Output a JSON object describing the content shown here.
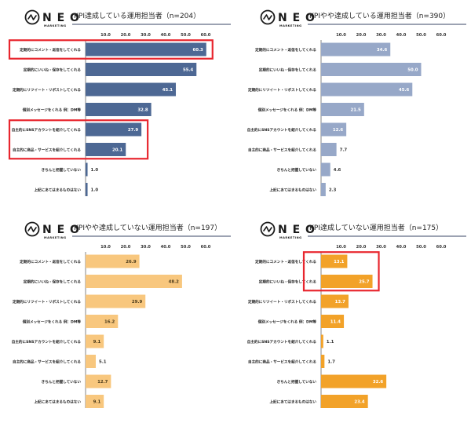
{
  "brand": {
    "name": "N E O",
    "sub": "MARKETING"
  },
  "charts": [
    {
      "type": "bar",
      "title": "KPI達成している運用担当者（n=204）",
      "color": "#4d6894",
      "label_color": "#ffffff",
      "ticks": [
        "10.0",
        "20.0",
        "30.0",
        "40.0",
        "50.0",
        "60.0"
      ],
      "xlim": [
        0,
        60
      ],
      "categories": [
        "定期的にコメント・返信をしてくれる",
        "定期的にいいね・保存をしてくれる",
        "定期的にリツイート・リポストしてくれる",
        "個別メッセージをくれる 例：DM等",
        "自主的にSNSアカウントを紹介してくれる",
        "自主的に商品・サービスを紹介してくれる",
        "きちんと把握していない",
        "上記にあてはまるものはない"
      ],
      "values": [
        60.3,
        55.4,
        45.1,
        32.8,
        27.9,
        20.1,
        1.0,
        1.0
      ],
      "highlight_groups": [
        [
          0,
          0
        ],
        [
          4,
          5
        ]
      ]
    },
    {
      "type": "bar",
      "title": "KPIやや達成している運用担当者（n=390）",
      "color": "#97a8c8",
      "label_color": "#ffffff",
      "ticks": [
        "10.0",
        "20.0",
        "30.0",
        "40.0",
        "50.0",
        "60.0"
      ],
      "xlim": [
        0,
        60
      ],
      "categories": [
        "定期的にコメント・返信をしてくれる",
        "定期的にいいね・保存をしてくれる",
        "定期的にリツイート・リポストしてくれる",
        "個別メッセージをくれる 例：DM等",
        "自主的にSNSアカウントを紹介してくれる",
        "自主的に商品・サービスを紹介してくれる",
        "きちんと把握していない",
        "上記にあてはまるものはない"
      ],
      "values": [
        34.6,
        50.0,
        45.6,
        21.5,
        12.6,
        7.7,
        4.6,
        2.3
      ],
      "highlight_groups": []
    },
    {
      "type": "bar",
      "title": "KPIやや達成していない運用担当者（n=197）",
      "color": "#f8c77e",
      "label_color": "#4a3a1a",
      "ticks": [
        "10.0",
        "20.0",
        "30.0",
        "40.0",
        "50.0",
        "60.0"
      ],
      "xlim": [
        0,
        60
      ],
      "categories": [
        "定期的にコメント・返信をしてくれる",
        "定期的にいいね・保存をしてくれる",
        "定期的にリツイート・リポストしてくれる",
        "個別メッセージをくれる 例：DM等",
        "自主的にSNSアカウントを紹介してくれる",
        "自主的に商品・サービスを紹介してくれる",
        "きちんと把握していない",
        "上記にあてはまるものはない"
      ],
      "values": [
        26.9,
        48.2,
        29.9,
        16.2,
        9.1,
        5.1,
        12.7,
        9.1
      ],
      "highlight_groups": []
    },
    {
      "type": "bar",
      "title": "KPI達成していない運用担当者（n=175）",
      "color": "#f2a229",
      "label_color": "#ffffff",
      "ticks": [
        "10.0",
        "20.0",
        "30.0",
        "40.0",
        "50.0",
        "60.0"
      ],
      "xlim": [
        0,
        60
      ],
      "categories": [
        "定期的にコメント・返信をしてくれる",
        "定期的にいいね・保存をしてくれる",
        "定期的にリツイート・リポストしてくれる",
        "個別メッセージをくれる 例：DM等",
        "自主的にSNSアカウントを紹介してくれる",
        "自主的に商品・サービスを紹介してくれる",
        "きちんと把握していない",
        "上記にあてはまるものはない"
      ],
      "values": [
        13.1,
        25.7,
        13.7,
        11.4,
        1.1,
        1.7,
        32.6,
        23.4
      ],
      "highlight_groups": [
        [
          0,
          1
        ]
      ]
    }
  ],
  "highlight_color": "#e8262e"
}
